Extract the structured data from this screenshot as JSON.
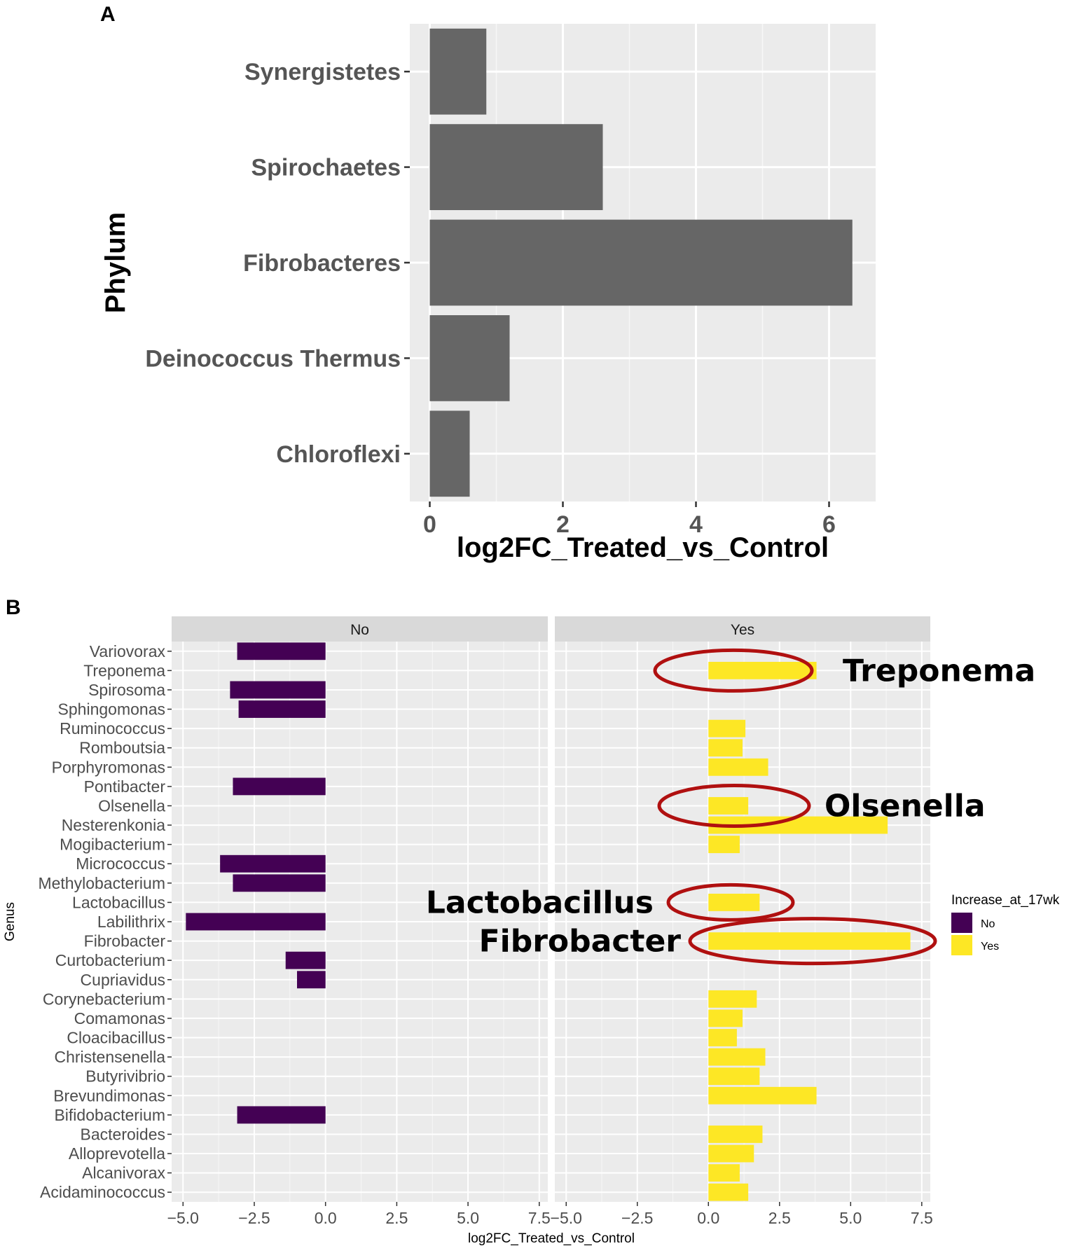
{
  "chart_data": [
    {
      "panel": "A",
      "type": "bar",
      "orientation": "horizontal",
      "xlabel": "log2FC_Treated_vs_Control",
      "ylabel": "Phylum",
      "xlim": [
        -0.3,
        6.7
      ],
      "xticks": [
        0,
        2,
        4,
        6
      ],
      "bar_color": "#666666",
      "panel_bg": "#ebebeb",
      "categories": [
        "Synergistetes",
        "Spirochaetes",
        "Fibrobacteres",
        "Deinococcus Thermus",
        "Chloroflexi"
      ],
      "values": [
        0.85,
        2.6,
        6.35,
        1.2,
        0.6
      ]
    },
    {
      "panel": "B",
      "type": "bar",
      "orientation": "horizontal",
      "faceted_by": "Increase_at_17wk",
      "xlabel": "log2FC_Treated_vs_Control",
      "ylabel": "Genus",
      "xlim": [
        -5.4,
        7.8
      ],
      "xticks": [
        -5.0,
        -2.5,
        0.0,
        2.5,
        5.0,
        7.5
      ],
      "xtick_labels": [
        "−5.0",
        "−2.5",
        "0.0",
        "2.5",
        "5.0",
        "7.5"
      ],
      "panel_bg": "#ebebeb",
      "facets": [
        "No",
        "Yes"
      ],
      "legend": {
        "title": "Increase_at_17wk",
        "entries": [
          {
            "label": "No",
            "color": "#440154"
          },
          {
            "label": "Yes",
            "color": "#fde725"
          }
        ]
      },
      "categories": [
        "Variovorax",
        "Treponema",
        "Spirosoma",
        "Sphingomonas",
        "Ruminococcus",
        "Romboutsia",
        "Porphyromonas",
        "Pontibacter",
        "Olsenella",
        "Nesterenkonia",
        "Mogibacterium",
        "Micrococcus",
        "Methylobacterium",
        "Lactobacillus",
        "Labilithrix",
        "Fibrobacter",
        "Curtobacterium",
        "Cupriavidus",
        "Corynebacterium",
        "Comamonas",
        "Cloacibacillus",
        "Christensenella",
        "Butyrivibrio",
        "Brevundimonas",
        "Bifidobacterium",
        "Bacteroides",
        "Alloprevotella",
        "Alcanivorax",
        "Acidaminococcus"
      ],
      "series": [
        {
          "name": "No",
          "color": "#440154",
          "values": [
            -3.1,
            null,
            -3.35,
            -3.05,
            null,
            null,
            null,
            -3.25,
            null,
            null,
            null,
            -3.7,
            -3.25,
            null,
            -4.9,
            null,
            -1.4,
            -1.0,
            null,
            null,
            null,
            null,
            null,
            null,
            -3.1,
            null,
            null,
            null,
            null
          ]
        },
        {
          "name": "Yes",
          "color": "#fde725",
          "values": [
            null,
            3.8,
            null,
            null,
            1.3,
            1.2,
            2.1,
            null,
            1.4,
            6.3,
            1.1,
            null,
            null,
            1.8,
            null,
            7.1,
            null,
            null,
            1.7,
            1.2,
            1.0,
            2.0,
            1.8,
            3.8,
            null,
            1.9,
            1.6,
            1.1,
            1.4
          ]
        }
      ],
      "annotations": [
        {
          "text": "Treponema",
          "target": "Treponema",
          "shape": "ellipse",
          "color": "#b01010"
        },
        {
          "text": "Olsenella",
          "target": "Olsenella",
          "shape": "ellipse",
          "color": "#b01010"
        },
        {
          "text": "Lactobacillus",
          "target": "Lactobacillus",
          "shape": "ellipse",
          "color": "#b01010"
        },
        {
          "text": "Fibrobacter",
          "target": "Fibrobacter",
          "shape": "ellipse",
          "color": "#b01010"
        }
      ]
    }
  ]
}
